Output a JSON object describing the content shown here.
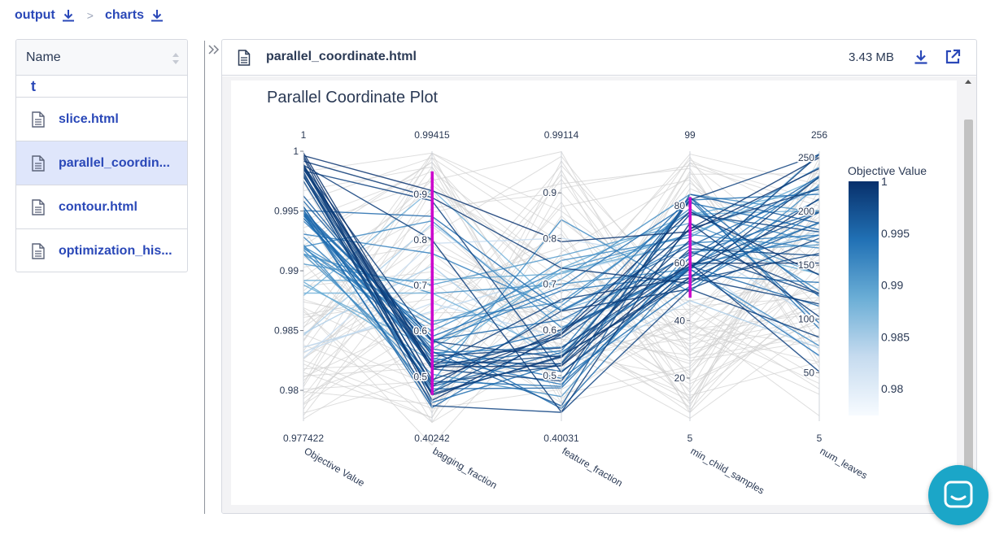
{
  "breadcrumb": {
    "items": [
      {
        "label": "output",
        "icon": "download-icon"
      },
      {
        "label": "charts",
        "icon": "download-icon"
      }
    ],
    "separator": ">"
  },
  "file_list": {
    "header": "Name",
    "up_glyph": "t",
    "items": [
      {
        "name": "slice.html",
        "selected": false
      },
      {
        "name": "parallel_coordin...",
        "selected": true
      },
      {
        "name": "contour.html",
        "selected": false
      },
      {
        "name": "optimization_his...",
        "selected": false
      }
    ]
  },
  "viewer": {
    "filename": "parallel_coordinate.html",
    "size": "3.43 MB",
    "actions": [
      "download-icon",
      "external-link-icon"
    ]
  },
  "colors": {
    "link": "#2a48b8",
    "brush": "#cc00cc",
    "chat": "#1ba6c8",
    "colorscale": [
      "#f7fbff",
      "#c6dbef",
      "#6baed6",
      "#2171b5",
      "#08306b"
    ],
    "inactive_line": "#d0d0d0"
  },
  "chart_data": {
    "type": "parallel_coordinates",
    "title": "Parallel Coordinate Plot",
    "colorbar": {
      "title": "Objective Value",
      "range": [
        0.977422,
        1
      ],
      "ticks": [
        "1",
        "0.995",
        "0.99",
        "0.985",
        "0.98"
      ]
    },
    "axes": [
      {
        "name": "Objective Value",
        "min_label": "0.977422",
        "max_label": "1",
        "range": [
          0.977422,
          1
        ],
        "ticks": [
          {
            "v": 1,
            "label": "1"
          },
          {
            "v": 0.995,
            "label": "0.995"
          },
          {
            "v": 0.99,
            "label": "0.99"
          },
          {
            "v": 0.985,
            "label": "0.985"
          },
          {
            "v": 0.98,
            "label": "0.98"
          }
        ]
      },
      {
        "name": "bagging_fraction",
        "min_label": "0.40242",
        "max_label": "0.99415",
        "range": [
          0.40242,
          0.99415
        ],
        "ticks": [
          {
            "v": 0.9,
            "label": "0.9"
          },
          {
            "v": 0.8,
            "label": "0.8"
          },
          {
            "v": 0.7,
            "label": "0.7"
          },
          {
            "v": 0.6,
            "label": "0.6"
          },
          {
            "v": 0.5,
            "label": "0.5"
          }
        ],
        "constraint": [
          0.46,
          0.95
        ]
      },
      {
        "name": "feature_fraction",
        "min_label": "0.40031",
        "max_label": "0.99114",
        "range": [
          0.40031,
          0.99114
        ],
        "ticks": [
          {
            "v": 0.9,
            "label": "0.9"
          },
          {
            "v": 0.8,
            "label": "0.8"
          },
          {
            "v": 0.7,
            "label": "0.7"
          },
          {
            "v": 0.6,
            "label": "0.6"
          },
          {
            "v": 0.5,
            "label": "0.5"
          }
        ]
      },
      {
        "name": "min_child_samples",
        "min_label": "5",
        "max_label": "99",
        "range": [
          5,
          99
        ],
        "ticks": [
          {
            "v": 80,
            "label": "80"
          },
          {
            "v": 60,
            "label": "60"
          },
          {
            "v": 40,
            "label": "40"
          },
          {
            "v": 20,
            "label": "20"
          }
        ],
        "constraint": [
          48,
          83
        ]
      },
      {
        "name": "num_leaves",
        "min_label": "5",
        "max_label": "256",
        "range": [
          5,
          256
        ],
        "ticks": [
          {
            "v": 250,
            "label": "250"
          },
          {
            "v": 200,
            "label": "200"
          },
          {
            "v": 150,
            "label": "150"
          },
          {
            "v": 100,
            "label": "100"
          },
          {
            "v": 50,
            "label": "50"
          }
        ]
      }
    ],
    "trials": [
      [
        0.99963,
        0.9077,
        0.79315,
        71,
        240
      ],
      [
        0.99792,
        0.46242,
        0.54012,
        77,
        181
      ],
      [
        0.99963,
        0.49292,
        0.59183,
        78,
        141
      ],
      [
        0.99751,
        0.46547,
        0.60131,
        59,
        199
      ],
      [
        0.9989,
        0.45942,
        0.54305,
        55,
        232
      ],
      [
        0.99917,
        0.89264,
        0.73549,
        53,
        212
      ],
      [
        0.99872,
        0.52279,
        0.66689,
        55,
        114
      ],
      [
        0.99808,
        0.52218,
        0.54364,
        54,
        161
      ],
      [
        0.99945,
        0.44813,
        0.58981,
        72,
        250
      ],
      [
        0.99879,
        0.57734,
        0.53969,
        68,
        124
      ],
      [
        0.99856,
        0.51681,
        0.48807,
        82,
        253
      ],
      [
        0.99872,
        0.53223,
        0.52599,
        72,
        221
      ],
      [
        0.99986,
        0.52154,
        0.52113,
        60,
        152
      ],
      [
        0.99836,
        0.88567,
        0.50718,
        58,
        253
      ],
      [
        0.99785,
        0.51658,
        0.58326,
        64,
        123
      ],
      [
        0.99861,
        0.4789,
        0.64138,
        51,
        83
      ],
      [
        0.99792,
        0.48452,
        0.52244,
        65,
        159
      ],
      [
        0.99828,
        0.43637,
        0.41965,
        51,
        175
      ],
      [
        0.99849,
        0.54512,
        0.56042,
        60,
        51
      ],
      [
        0.99884,
        0.80007,
        0.42016,
        74,
        102
      ],
      [
        0.99538,
        0.47326,
        0.47305,
        62,
        233
      ],
      [
        0.99511,
        0.43211,
        0.59658,
        83,
        121
      ],
      [
        0.99583,
        0.56114,
        0.50891,
        55,
        190
      ],
      [
        0.99462,
        0.5542,
        0.49402,
        52,
        200
      ],
      [
        0.9944,
        0.54126,
        0.48082,
        59,
        178
      ],
      [
        0.99465,
        0.49025,
        0.47643,
        83,
        91
      ],
      [
        0.99469,
        0.58813,
        0.69413,
        81,
        183
      ],
      [
        0.99481,
        0.44346,
        0.52716,
        82,
        216
      ],
      [
        0.99486,
        0.52587,
        0.55416,
        82,
        96
      ],
      [
        0.99626,
        0.55484,
        0.43373,
        84,
        189
      ],
      [
        0.99486,
        0.58113,
        0.42788,
        59,
        211
      ],
      [
        0.99504,
        0.85142,
        0.64124,
        66,
        223
      ],
      [
        0.99501,
        0.58004,
        0.62208,
        63,
        200
      ],
      [
        0.99441,
        0.53278,
        0.60015,
        58,
        66
      ],
      [
        0.99416,
        0.57733,
        0.68587,
        56,
        134
      ],
      [
        0.99534,
        0.47839,
        0.55059,
        59,
        112
      ],
      [
        0.99306,
        0.77004,
        0.64307,
        67,
        178
      ],
      [
        0.99283,
        0.5522,
        0.56227,
        58,
        232
      ],
      [
        0.99138,
        0.50542,
        0.45402,
        64,
        169
      ],
      [
        0.99138,
        0.61313,
        0.7112,
        84,
        199
      ],
      [
        0.99218,
        0.46545,
        0.65287,
        79,
        126
      ],
      [
        0.99195,
        0.57155,
        0.75213,
        69,
        241
      ],
      [
        0.99202,
        0.84133,
        0.60508,
        58,
        75
      ],
      [
        0.99175,
        0.4882,
        0.84131,
        50,
        225
      ],
      [
        0.99187,
        0.60012,
        0.73308,
        70,
        166
      ],
      [
        0.99142,
        0.68242,
        0.70047,
        58,
        189
      ],
      [
        0.99057,
        0.70153,
        0.76251,
        74,
        141
      ],
      [
        0.99203,
        0.6214,
        0.6609,
        78,
        171
      ],
      [
        0.98792,
        0.91034,
        0.64327,
        58,
        254
      ],
      [
        0.98919,
        0.71202,
        0.72311,
        70,
        231
      ],
      [
        0.98908,
        0.53342,
        0.73513,
        77,
        220
      ],
      [
        0.98882,
        0.56114,
        0.72708,
        67,
        142
      ],
      [
        0.98813,
        0.68315,
        0.54413,
        77,
        201
      ],
      [
        0.98476,
        0.74303,
        0.51241,
        47,
        73
      ],
      [
        0.98458,
        0.83507,
        0.62101,
        57,
        182
      ],
      [
        0.98361,
        0.64308,
        0.72313,
        67,
        99
      ],
      [
        0.9827,
        0.79212,
        0.8008,
        61,
        65
      ],
      [
        0.98321,
        0.66107,
        0.58314,
        72,
        218
      ]
    ],
    "inactive_trials": [
      [
        0.9803,
        0.92,
        0.71,
        35,
        180
      ],
      [
        0.9815,
        0.41,
        0.95,
        12,
        220
      ],
      [
        0.9788,
        0.62,
        0.44,
        92,
        60
      ],
      [
        0.9842,
        0.98,
        0.55,
        20,
        240
      ],
      [
        0.9812,
        0.52,
        0.88,
        8,
        130
      ],
      [
        0.9868,
        0.35,
        0.67,
        30,
        95
      ],
      [
        0.9795,
        0.81,
        0.98,
        42,
        150
      ],
      [
        0.9831,
        0.72,
        0.62,
        25,
        210
      ],
      [
        0.9825,
        0.43,
        0.47,
        38,
        75
      ],
      [
        0.9793,
        0.66,
        0.81,
        15,
        170
      ],
      [
        0.9776,
        0.58,
        0.93,
        28,
        118
      ],
      [
        0.9852,
        0.99,
        0.45,
        44,
        35
      ],
      [
        0.9808,
        0.75,
        0.58,
        10,
        245
      ],
      [
        0.9838,
        0.46,
        0.69,
        33,
        190
      ],
      [
        0.9784,
        0.91,
        0.74,
        22,
        140
      ],
      [
        0.9818,
        0.53,
        0.51,
        95,
        210
      ],
      [
        0.9846,
        0.87,
        0.9,
        36,
        60
      ],
      [
        0.9801,
        0.49,
        0.63,
        18,
        100
      ],
      [
        0.9833,
        0.94,
        0.52,
        41,
        230
      ],
      [
        0.9789,
        0.69,
        0.78,
        27,
        85
      ],
      [
        0.9822,
        0.41,
        0.85,
        31,
        160
      ],
      [
        0.9856,
        0.83,
        0.59,
        12,
        205
      ],
      [
        0.9798,
        0.57,
        0.71,
        39,
        128
      ],
      [
        0.9841,
        0.96,
        0.46,
        24,
        172
      ],
      [
        0.9811,
        0.63,
        0.96,
        46,
        45
      ],
      [
        0.9779,
        0.78,
        0.66,
        16,
        235
      ],
      [
        0.9847,
        0.48,
        0.54,
        34,
        110
      ],
      [
        0.9805,
        0.99,
        0.82,
        9,
        150
      ],
      [
        0.9827,
        0.71,
        0.49,
        43,
        195
      ],
      [
        0.9799,
        0.44,
        0.61,
        26,
        80
      ],
      [
        0.9874,
        0.61,
        0.57,
        88,
        140
      ],
      [
        0.9883,
        0.93,
        0.68,
        96,
        190
      ],
      [
        0.9866,
        0.4,
        0.77,
        90,
        110
      ],
      [
        0.9861,
        0.67,
        0.43,
        86,
        170
      ],
      [
        0.9891,
        0.86,
        0.92,
        93,
        55
      ],
      [
        0.9903,
        0.79,
        0.53,
        91,
        235
      ],
      [
        0.9912,
        0.55,
        0.87,
        89,
        80
      ],
      [
        0.9925,
        0.97,
        0.48,
        95,
        150
      ],
      [
        0.9934,
        0.45,
        0.65,
        13,
        120
      ],
      [
        0.9942,
        0.95,
        0.73,
        21,
        200
      ],
      [
        0.9958,
        0.98,
        0.79,
        11,
        165
      ],
      [
        0.9967,
        0.96,
        0.58,
        97,
        70
      ],
      [
        0.9974,
        0.43,
        0.97,
        29,
        190
      ],
      [
        0.9983,
        0.99,
        0.86,
        45,
        120
      ],
      [
        0.9991,
        0.42,
        0.91,
        94,
        205
      ],
      [
        0.9956,
        0.61,
        0.94,
        37,
        240
      ],
      [
        0.9936,
        0.93,
        0.99,
        19,
        100
      ],
      [
        0.9949,
        0.4,
        0.57,
        14,
        60
      ],
      [
        0.9921,
        0.97,
        0.66,
        98,
        225
      ],
      [
        0.9907,
        0.45,
        0.76,
        35,
        30
      ],
      [
        0.9895,
        0.91,
        0.44,
        23,
        185
      ],
      [
        0.9869,
        0.52,
        0.84,
        40,
        10
      ],
      [
        0.9887,
        0.73,
        0.61,
        8,
        250
      ],
      [
        0.9876,
        0.58,
        0.7,
        47,
        135
      ],
      [
        0.9816,
        0.85,
        0.56,
        6,
        95
      ],
      [
        0.9836,
        0.64,
        0.64,
        44,
        155
      ],
      [
        0.9781,
        0.5,
        0.6,
        39,
        40
      ],
      [
        0.9853,
        0.8,
        0.63,
        32,
        100
      ],
      [
        0.9863,
        0.69,
        0.58,
        28,
        135
      ],
      [
        0.9826,
        0.77,
        0.55,
        37,
        105
      ]
    ]
  }
}
